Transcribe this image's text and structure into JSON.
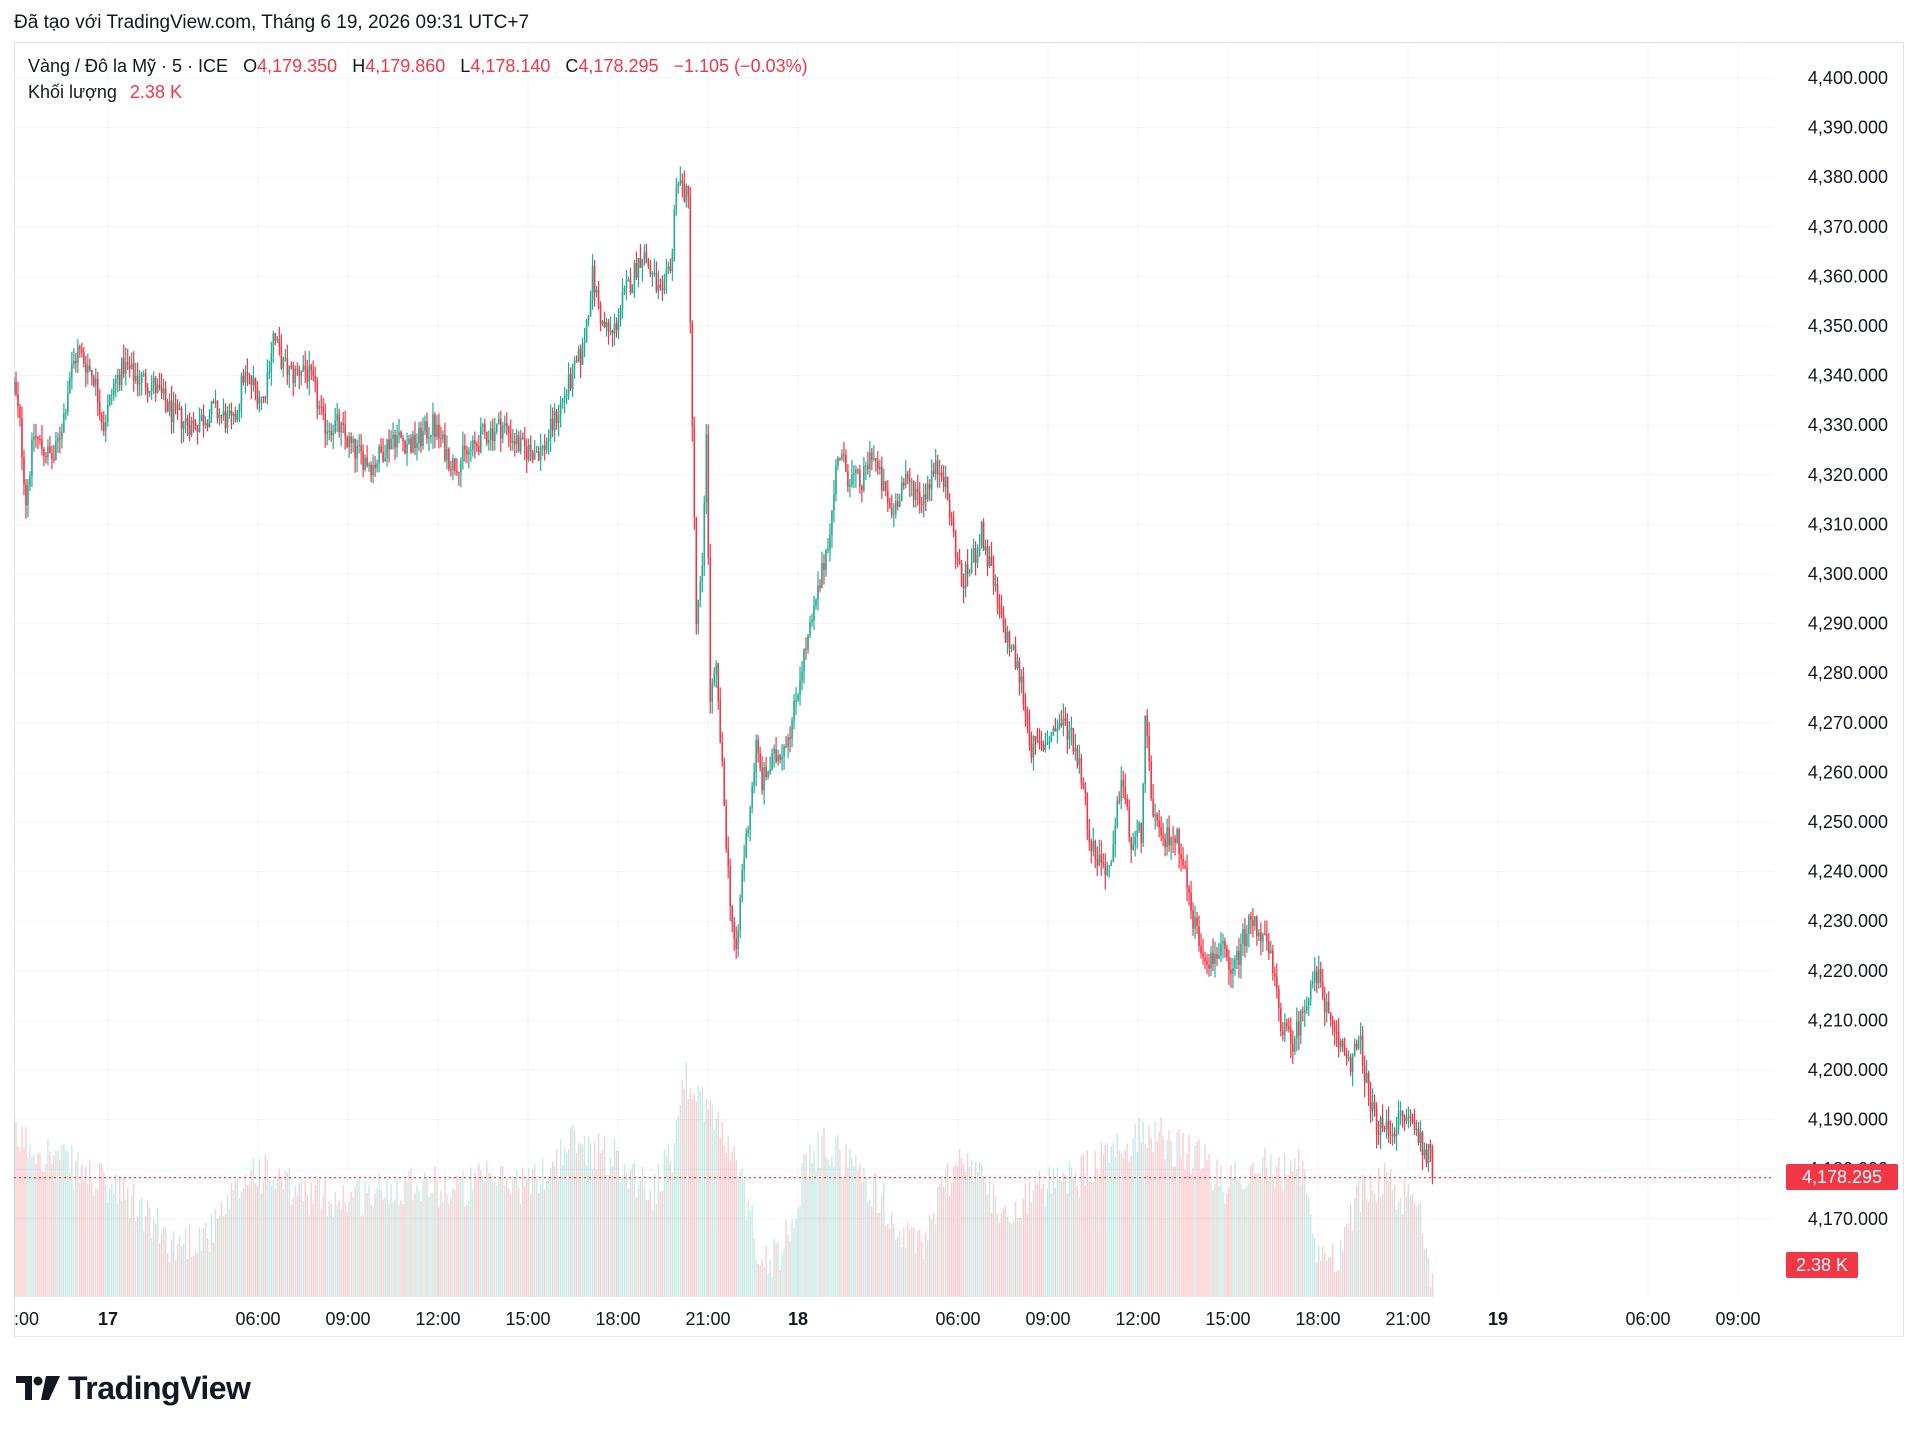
{
  "header": {
    "created_with": "Đã tạo với TradingView.com, Tháng 6 19, 2026 09:31 UTC+7"
  },
  "legend": {
    "symbol": "Vàng / Đô la Mỹ · 5 · ICE",
    "o_key": "O",
    "o_val": "4,179.350",
    "h_key": "H",
    "h_val": "4,179.860",
    "l_key": "L",
    "l_val": "4,178.140",
    "c_key": "C",
    "c_val": "4,178.295",
    "change": "−1.105 (−0.03%)",
    "volume_key": "Khối lượng",
    "volume_val": "2.38 K"
  },
  "price_tag": "4,178.295",
  "volume_tag": "2.38 K",
  "logo_text": "TradingView",
  "colors": {
    "up": "#22ab94",
    "down": "#f23645",
    "grid": "#f0f3fa",
    "text": "#131722"
  },
  "chart_data": {
    "type": "candlestick",
    "timeframe": "5",
    "ylim": [
      4165,
      4405
    ],
    "y_ticks": [
      "4,170.000",
      "4,180.000",
      "4,190.000",
      "4,200.000",
      "4,210.000",
      "4,220.000",
      "4,230.000",
      "4,240.000",
      "4,250.000",
      "4,260.000",
      "4,270.000",
      "4,280.000",
      "4,290.000",
      "4,300.000",
      "4,310.000",
      "4,320.000",
      "4,330.000",
      "4,340.000",
      "4,350.000",
      "4,360.000",
      "4,370.000",
      "4,380.000",
      "4,390.000",
      "4,400.000"
    ],
    "x_ticks": [
      {
        "label": ":00",
        "bold": false
      },
      {
        "label": "17",
        "bold": true
      },
      {
        "label": "06:00",
        "bold": false
      },
      {
        "label": "09:00",
        "bold": false
      },
      {
        "label": "12:00",
        "bold": false
      },
      {
        "label": "15:00",
        "bold": false
      },
      {
        "label": "18:00",
        "bold": false
      },
      {
        "label": "21:00",
        "bold": false
      },
      {
        "label": "18",
        "bold": true
      },
      {
        "label": "06:00",
        "bold": false
      },
      {
        "label": "09:00",
        "bold": false
      },
      {
        "label": "12:00",
        "bold": false
      },
      {
        "label": "15:00",
        "bold": false
      },
      {
        "label": "18:00",
        "bold": false
      },
      {
        "label": "21:00",
        "bold": false
      },
      {
        "label": "19",
        "bold": true
      },
      {
        "label": "06:00",
        "bold": false
      },
      {
        "label": "09:00",
        "bold": false
      }
    ],
    "price_path": [
      [
        0,
        4338
      ],
      [
        3,
        4330
      ],
      [
        6,
        4315
      ],
      [
        10,
        4328
      ],
      [
        15,
        4325
      ],
      [
        20,
        4323
      ],
      [
        25,
        4332
      ],
      [
        28,
        4340
      ],
      [
        32,
        4345
      ],
      [
        40,
        4340
      ],
      [
        45,
        4330
      ],
      [
        50,
        4338
      ],
      [
        55,
        4342
      ],
      [
        60,
        4340
      ],
      [
        70,
        4338
      ],
      [
        80,
        4332
      ],
      [
        90,
        4330
      ],
      [
        100,
        4333
      ],
      [
        110,
        4330
      ],
      [
        115,
        4340
      ],
      [
        120,
        4338
      ],
      [
        125,
        4335
      ],
      [
        130,
        4348
      ],
      [
        135,
        4342
      ],
      [
        140,
        4340
      ],
      [
        145,
        4342
      ],
      [
        150,
        4338
      ],
      [
        155,
        4330
      ],
      [
        162,
        4330
      ],
      [
        170,
        4325
      ],
      [
        180,
        4322
      ],
      [
        190,
        4328
      ],
      [
        200,
        4326
      ],
      [
        210,
        4330
      ],
      [
        220,
        4322
      ],
      [
        230,
        4325
      ],
      [
        235,
        4328
      ],
      [
        245,
        4330
      ],
      [
        255,
        4325
      ],
      [
        265,
        4325
      ],
      [
        270,
        4330
      ],
      [
        275,
        4335
      ],
      [
        280,
        4340
      ],
      [
        285,
        4345
      ],
      [
        290,
        4360
      ],
      [
        295,
        4350
      ],
      [
        300,
        4348
      ],
      [
        305,
        4355
      ],
      [
        310,
        4360
      ],
      [
        315,
        4365
      ],
      [
        320,
        4360
      ],
      [
        325,
        4355
      ],
      [
        330,
        4365
      ],
      [
        332,
        4380
      ],
      [
        335,
        4378
      ],
      [
        338,
        4375
      ],
      [
        340,
        4330
      ],
      [
        342,
        4290
      ],
      [
        345,
        4300
      ],
      [
        347,
        4330
      ],
      [
        349,
        4275
      ],
      [
        352,
        4280
      ],
      [
        355,
        4260
      ],
      [
        358,
        4240
      ],
      [
        360,
        4230
      ],
      [
        362,
        4222
      ],
      [
        365,
        4240
      ],
      [
        368,
        4250
      ],
      [
        372,
        4265
      ],
      [
        375,
        4258
      ],
      [
        380,
        4262
      ],
      [
        385,
        4265
      ],
      [
        390,
        4270
      ],
      [
        395,
        4282
      ],
      [
        400,
        4290
      ],
      [
        405,
        4300
      ],
      [
        410,
        4312
      ],
      [
        413,
        4325
      ],
      [
        418,
        4320
      ],
      [
        425,
        4318
      ],
      [
        430,
        4325
      ],
      [
        435,
        4318
      ],
      [
        440,
        4312
      ],
      [
        445,
        4318
      ],
      [
        450,
        4318
      ],
      [
        455,
        4315
      ],
      [
        460,
        4320
      ],
      [
        465,
        4322
      ],
      [
        470,
        4310
      ],
      [
        475,
        4298
      ],
      [
        480,
        4302
      ],
      [
        485,
        4308
      ],
      [
        490,
        4300
      ],
      [
        495,
        4290
      ],
      [
        500,
        4285
      ],
      [
        505,
        4278
      ],
      [
        510,
        4265
      ],
      [
        515,
        4265
      ],
      [
        520,
        4268
      ],
      [
        525,
        4270
      ],
      [
        530,
        4268
      ],
      [
        535,
        4260
      ],
      [
        540,
        4245
      ],
      [
        545,
        4242
      ],
      [
        550,
        4240
      ],
      [
        555,
        4260
      ],
      [
        560,
        4245
      ],
      [
        565,
        4248
      ],
      [
        567,
        4270
      ],
      [
        570,
        4255
      ],
      [
        575,
        4245
      ],
      [
        580,
        4248
      ],
      [
        585,
        4245
      ],
      [
        590,
        4232
      ],
      [
        595,
        4225
      ],
      [
        600,
        4222
      ],
      [
        605,
        4225
      ],
      [
        610,
        4218
      ],
      [
        615,
        4225
      ],
      [
        620,
        4230
      ],
      [
        625,
        4228
      ],
      [
        630,
        4222
      ],
      [
        635,
        4210
      ],
      [
        640,
        4205
      ],
      [
        645,
        4210
      ],
      [
        650,
        4218
      ],
      [
        655,
        4218
      ],
      [
        660,
        4208
      ],
      [
        665,
        4205
      ],
      [
        670,
        4202
      ],
      [
        675,
        4205
      ],
      [
        680,
        4192
      ],
      [
        685,
        4188
      ],
      [
        690,
        4188
      ],
      [
        695,
        4190
      ],
      [
        700,
        4190
      ],
      [
        705,
        4186
      ],
      [
        710,
        4182
      ],
      [
        711,
        4178.3
      ]
    ],
    "volume_path": [
      [
        0,
        0.68
      ],
      [
        20,
        0.6
      ],
      [
        40,
        0.5
      ],
      [
        60,
        0.4
      ],
      [
        80,
        0.22
      ],
      [
        100,
        0.28
      ],
      [
        120,
        0.55
      ],
      [
        140,
        0.45
      ],
      [
        160,
        0.42
      ],
      [
        180,
        0.44
      ],
      [
        200,
        0.5
      ],
      [
        220,
        0.45
      ],
      [
        240,
        0.5
      ],
      [
        260,
        0.48
      ],
      [
        280,
        0.66
      ],
      [
        300,
        0.6
      ],
      [
        320,
        0.45
      ],
      [
        330,
        0.6
      ],
      [
        335,
        0.95
      ],
      [
        345,
        0.85
      ],
      [
        355,
        0.7
      ],
      [
        365,
        0.48
      ],
      [
        375,
        0.15
      ],
      [
        385,
        0.2
      ],
      [
        395,
        0.5
      ],
      [
        405,
        0.65
      ],
      [
        415,
        0.6
      ],
      [
        425,
        0.52
      ],
      [
        435,
        0.42
      ],
      [
        445,
        0.25
      ],
      [
        455,
        0.22
      ],
      [
        465,
        0.45
      ],
      [
        475,
        0.62
      ],
      [
        485,
        0.5
      ],
      [
        495,
        0.35
      ],
      [
        505,
        0.42
      ],
      [
        515,
        0.45
      ],
      [
        525,
        0.48
      ],
      [
        535,
        0.52
      ],
      [
        545,
        0.58
      ],
      [
        555,
        0.62
      ],
      [
        565,
        0.72
      ],
      [
        575,
        0.68
      ],
      [
        585,
        0.62
      ],
      [
        595,
        0.58
      ],
      [
        605,
        0.48
      ],
      [
        615,
        0.52
      ],
      [
        625,
        0.58
      ],
      [
        635,
        0.52
      ],
      [
        645,
        0.55
      ],
      [
        650,
        0.35
      ],
      [
        655,
        0.15
      ],
      [
        665,
        0.2
      ],
      [
        675,
        0.45
      ],
      [
        685,
        0.5
      ],
      [
        695,
        0.42
      ],
      [
        705,
        0.38
      ],
      [
        711,
        0.08
      ]
    ],
    "last_close": 4178.295
  }
}
